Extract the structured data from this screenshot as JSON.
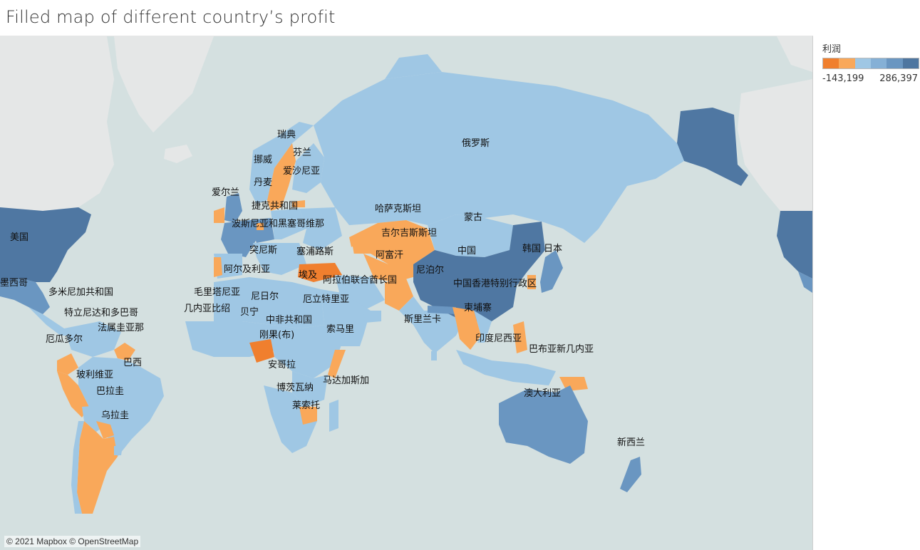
{
  "title": "Filled map of different country’s profit",
  "legend": {
    "title": "利润",
    "min_label": "-143,199",
    "max_label": "286,397",
    "colors": [
      "#f07f2e",
      "#f9a85a",
      "#9fc7e4",
      "#85b0d6",
      "#6a96c1",
      "#4e76a0"
    ]
  },
  "attribution": "© 2021 Mapbox © OpenStreetMap",
  "colors": {
    "ocean": "#d4e0e0",
    "land_nodata": "#e5e7e7",
    "dark_orange": "#f07f2e",
    "orange": "#f9a85a",
    "light_blue": "#9fc7e4",
    "mid_blue": "#7aa3cc",
    "dark_blue": "#4f77a2"
  },
  "labels": {
    "usa": "美国",
    "mexico": "墨西哥",
    "dominican": "多米尼加共和国",
    "trinidad": "特立尼达和多巴哥",
    "guiana": "法属圭亚那",
    "ecuador": "厄瓜多尔",
    "brazil": "巴西",
    "bolivia": "玻利维亚",
    "paraguay": "巴拉圭",
    "uruguay": "乌拉圭",
    "sweden": "瑞典",
    "finland": "芬兰",
    "norway": "挪威",
    "estonia": "爱沙尼亚",
    "denmark": "丹麦",
    "ireland": "爱尔兰",
    "czech": "捷克共和国",
    "bosnia": "波斯尼亚和黑塞哥维那",
    "cyprus": "塞浦路斯",
    "tunisia": "突尼斯",
    "algeria": "阿尔及利亚",
    "egypt": "埃及",
    "uae": "阿拉伯联合酋长国",
    "mauritania": "毛里塔尼亚",
    "niger": "尼日尔",
    "guinea_bissau": "几内亚比绍",
    "benin": "贝宁",
    "eritrea": "厄立特里亚",
    "car": "中非共和国",
    "congo": "刚果(布)",
    "somalia": "索马里",
    "angola": "安哥拉",
    "madagascar": "马达加斯加",
    "botswana": "博茨瓦纳",
    "lesotho": "莱索托",
    "russia": "俄罗斯",
    "kazakhstan": "哈萨克斯坦",
    "kyrgyzstan": "吉尔吉斯斯坦",
    "mongolia": "蒙古",
    "afghanistan": "阿富汗",
    "china": "中国",
    "korea": "韩国",
    "japan": "日本",
    "nepal": "尼泊尔",
    "hongkong": "中国香港特别行政区",
    "cambodia": "柬埔寨",
    "srilanka": "斯里兰卡",
    "indonesia": "印度尼西亚",
    "png": "巴布亚新几内亚",
    "australia": "澳大利亚",
    "newzealand": "新西兰"
  }
}
